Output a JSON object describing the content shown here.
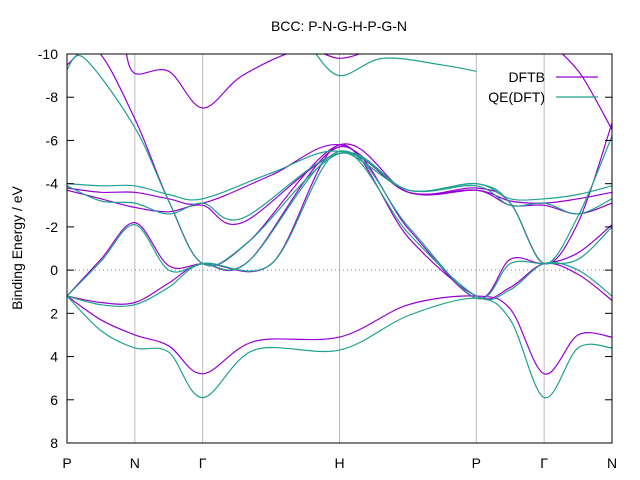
{
  "chart_data": {
    "type": "line",
    "title": "BCC: P-N-G-H-P-G-N",
    "ylabel": "Binding Energy / eV",
    "xlabel": "",
    "ylim": [
      8,
      -10
    ],
    "xlim": [
      0,
      4.66
    ],
    "y_ticks": [
      -10,
      -8,
      -6,
      -4,
      -2,
      0,
      2,
      4,
      6,
      8
    ],
    "y_tick_labels": [
      "-10",
      "-8",
      "-6",
      "-4",
      "-2",
      "0",
      "2",
      "4",
      "6",
      "8"
    ],
    "x_ticks": [
      {
        "x": 0,
        "label": "P"
      },
      {
        "x": 0.58,
        "label": "N"
      },
      {
        "x": 1.16,
        "label": "Γ"
      },
      {
        "x": 2.33,
        "label": "H"
      },
      {
        "x": 3.5,
        "label": "P"
      },
      {
        "x": 4.08,
        "label": "Γ"
      },
      {
        "x": 4.66,
        "label": "N"
      }
    ],
    "grid": "vertical lines at high-symmetry points",
    "zero_line": "dotted at 0",
    "legend_position": "top-right",
    "series": [
      {
        "name": "DFTB",
        "color": "#9400d3",
        "bands": [
          [
            [
              0,
              1.2
            ],
            [
              0.29,
              1.5
            ],
            [
              0.58,
              1.5
            ],
            [
              0.87,
              0.6
            ],
            [
              1.16,
              -0.3
            ],
            [
              1.75,
              -0.3
            ],
            [
              2.33,
              -5.8
            ],
            [
              2.92,
              -1.5
            ],
            [
              3.5,
              1.2
            ],
            [
              3.79,
              0.8
            ],
            [
              4.08,
              -0.3
            ],
            [
              4.37,
              0.2
            ],
            [
              4.66,
              1.4
            ]
          ],
          [
            [
              0,
              1.2
            ],
            [
              0.29,
              2.3
            ],
            [
              0.58,
              3.0
            ],
            [
              0.87,
              3.5
            ],
            [
              1.16,
              4.8
            ],
            [
              1.6,
              3.3
            ],
            [
              2.33,
              3.1
            ],
            [
              2.92,
              1.6
            ],
            [
              3.5,
              1.2
            ],
            [
              3.79,
              1.8
            ],
            [
              4.08,
              4.8
            ],
            [
              4.37,
              3.0
            ],
            [
              4.66,
              3.1
            ]
          ],
          [
            [
              0,
              1.2
            ],
            [
              0.29,
              -0.5
            ],
            [
              0.58,
              -2.2
            ],
            [
              0.87,
              -0.2
            ],
            [
              1.16,
              -0.3
            ],
            [
              1.55,
              -0.4
            ],
            [
              2.33,
              -5.7
            ],
            [
              2.92,
              -1.9
            ],
            [
              3.5,
              1.3
            ],
            [
              3.79,
              -0.5
            ],
            [
              4.08,
              -0.3
            ],
            [
              4.37,
              -0.8
            ],
            [
              4.66,
              -2.1
            ]
          ],
          [
            [
              0,
              -3.8
            ],
            [
              0.29,
              -3.6
            ],
            [
              0.58,
              -3.6
            ],
            [
              0.87,
              -3.3
            ],
            [
              1.16,
              -3.1
            ],
            [
              1.75,
              -4.4
            ],
            [
              2.33,
              -5.8
            ],
            [
              2.92,
              -3.6
            ],
            [
              3.5,
              -3.7
            ],
            [
              3.79,
              -3.2
            ],
            [
              4.08,
              -3.1
            ],
            [
              4.37,
              -3.3
            ],
            [
              4.66,
              -3.6
            ]
          ],
          [
            [
              0,
              -3.7
            ],
            [
              0.29,
              -3.3
            ],
            [
              0.58,
              -2.9
            ],
            [
              0.87,
              -2.7
            ],
            [
              1.16,
              -3.0
            ],
            [
              1.5,
              -2.2
            ],
            [
              2.33,
              -5.4
            ],
            [
              2.92,
              -3.6
            ],
            [
              3.5,
              -3.7
            ],
            [
              3.79,
              -3.0
            ],
            [
              4.08,
              -3.0
            ],
            [
              4.37,
              -2.6
            ],
            [
              4.66,
              -3.1
            ]
          ],
          [
            [
              0,
              -9.5
            ],
            [
              0.25,
              -10.2
            ],
            [
              0.58,
              -7.0
            ],
            [
              0.87,
              -3.2
            ],
            [
              1.16,
              -0.3
            ],
            [
              1.55,
              -1.3
            ],
            [
              2.33,
              -5.8
            ],
            [
              2.92,
              -3.6
            ],
            [
              3.5,
              -3.8
            ],
            [
              3.79,
              -3.1
            ],
            [
              4.08,
              -0.3
            ],
            [
              4.37,
              -2.2
            ],
            [
              4.66,
              -6.8
            ]
          ],
          [
            [
              0.5,
              -10.2
            ],
            [
              0.58,
              -9.1
            ],
            [
              0.87,
              -9.2
            ],
            [
              1.16,
              -7.5
            ],
            [
              1.5,
              -9.0
            ],
            [
              2.0,
              -10.2
            ],
            [
              2.33,
              -9.8
            ],
            [
              2.6,
              -10.2
            ]
          ],
          [
            [
              4.2,
              -10.2
            ],
            [
              4.4,
              -9.0
            ],
            [
              4.66,
              -6.5
            ]
          ]
        ]
      },
      {
        "name": "QE(DFT)",
        "color": "#20a090",
        "bands": [
          [
            [
              0,
              1.2
            ],
            [
              0.29,
              1.6
            ],
            [
              0.58,
              1.6
            ],
            [
              0.87,
              0.8
            ],
            [
              1.16,
              -0.3
            ],
            [
              1.75,
              -0.3
            ],
            [
              2.33,
              -5.5
            ],
            [
              2.92,
              -1.7
            ],
            [
              3.5,
              1.2
            ],
            [
              3.79,
              0.9
            ],
            [
              4.08,
              -0.3
            ],
            [
              4.37,
              0.0
            ],
            [
              4.66,
              1.2
            ]
          ],
          [
            [
              0,
              1.2
            ],
            [
              0.29,
              2.8
            ],
            [
              0.58,
              3.6
            ],
            [
              0.87,
              3.8
            ],
            [
              1.16,
              5.9
            ],
            [
              1.6,
              3.7
            ],
            [
              2.33,
              3.7
            ],
            [
              2.92,
              2.1
            ],
            [
              3.5,
              1.3
            ],
            [
              3.79,
              2.3
            ],
            [
              4.08,
              5.9
            ],
            [
              4.37,
              3.6
            ],
            [
              4.66,
              3.6
            ]
          ],
          [
            [
              0,
              1.2
            ],
            [
              0.29,
              -0.4
            ],
            [
              0.58,
              -2.1
            ],
            [
              0.87,
              0.0
            ],
            [
              1.16,
              -0.3
            ],
            [
              1.55,
              -0.4
            ],
            [
              2.33,
              -5.5
            ],
            [
              2.92,
              -2.0
            ],
            [
              3.5,
              1.3
            ],
            [
              3.79,
              -0.3
            ],
            [
              4.08,
              -0.3
            ],
            [
              4.37,
              -0.5
            ],
            [
              4.66,
              -2.0
            ]
          ],
          [
            [
              0,
              -4.0
            ],
            [
              0.29,
              -3.9
            ],
            [
              0.58,
              -3.9
            ],
            [
              0.87,
              -3.5
            ],
            [
              1.16,
              -3.3
            ],
            [
              1.75,
              -4.5
            ],
            [
              2.33,
              -5.5
            ],
            [
              2.92,
              -3.7
            ],
            [
              3.5,
              -4.0
            ],
            [
              3.79,
              -3.3
            ],
            [
              4.08,
              -3.3
            ],
            [
              4.37,
              -3.5
            ],
            [
              4.66,
              -3.9
            ]
          ],
          [
            [
              0,
              -3.9
            ],
            [
              0.29,
              -3.2
            ],
            [
              0.58,
              -3.1
            ],
            [
              0.87,
              -2.6
            ],
            [
              1.16,
              -3.1
            ],
            [
              1.5,
              -2.4
            ],
            [
              2.33,
              -5.4
            ],
            [
              2.92,
              -3.7
            ],
            [
              3.5,
              -3.9
            ],
            [
              3.79,
              -3.0
            ],
            [
              4.08,
              -3.1
            ],
            [
              4.37,
              -2.6
            ],
            [
              4.66,
              -3.3
            ]
          ],
          [
            [
              0,
              -9.3
            ],
            [
              0.15,
              -9.8
            ],
            [
              0.58,
              -6.6
            ],
            [
              0.87,
              -3.2
            ],
            [
              1.16,
              -0.3
            ],
            [
              1.55,
              -1.3
            ],
            [
              2.33,
              -5.4
            ],
            [
              2.92,
              -3.7
            ],
            [
              3.5,
              -4.0
            ],
            [
              3.79,
              -3.1
            ],
            [
              4.08,
              -0.3
            ],
            [
              4.37,
              -2.5
            ],
            [
              4.66,
              -6.2
            ]
          ],
          [
            [
              2.1,
              -10.2
            ],
            [
              2.33,
              -9.0
            ],
            [
              2.7,
              -9.8
            ],
            [
              3.2,
              -9.5
            ],
            [
              3.5,
              -9.2
            ]
          ]
        ]
      }
    ]
  }
}
